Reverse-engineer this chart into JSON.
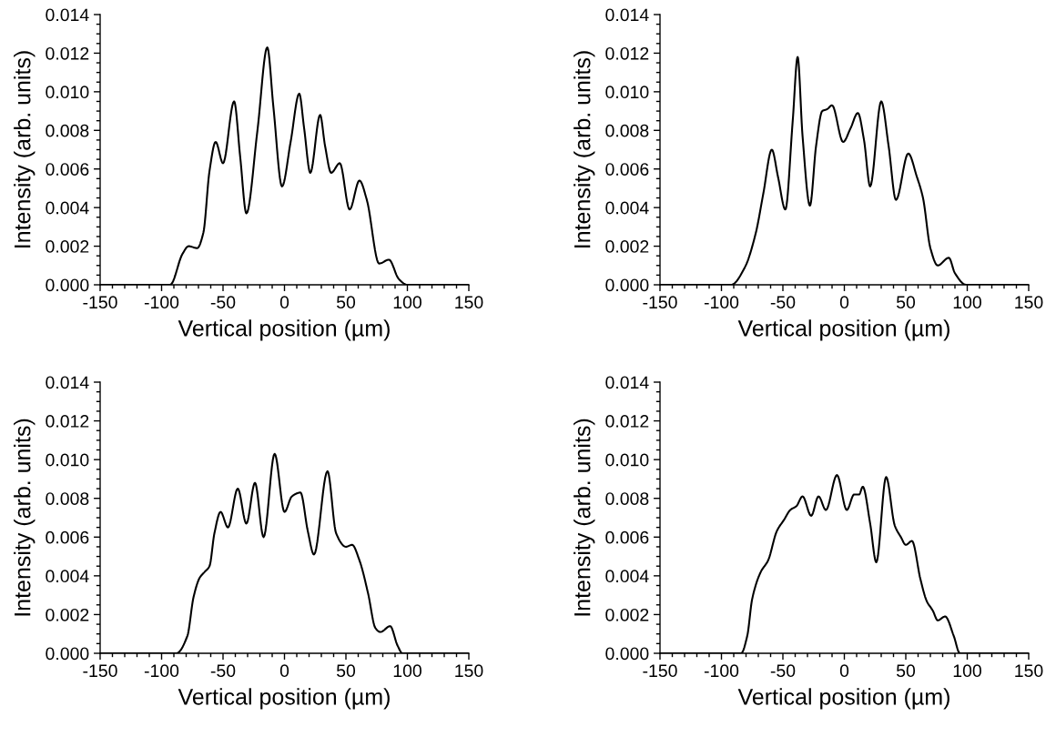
{
  "chart_data": [
    {
      "type": "line",
      "xlabel": "Vertical position (µm)",
      "ylabel": "Intensity (arb. units)",
      "xlim": [
        -150,
        150
      ],
      "xticks": [
        -150,
        -100,
        -50,
        0,
        50,
        100,
        150
      ],
      "ylim": [
        0,
        0.014
      ],
      "yticks": [
        {
          "value": 0,
          "label": "0.000"
        },
        {
          "value": 0.002,
          "label": "0.002"
        },
        {
          "value": 0.004,
          "label": "0.004"
        },
        {
          "value": 0.006,
          "label": "0.006"
        },
        {
          "value": 0.008,
          "label": "0.008"
        },
        {
          "value": 0.01,
          "label": "0.010"
        },
        {
          "value": 0.012,
          "label": "0.012"
        },
        {
          "value": 0.014,
          "label": "0.014"
        }
      ],
      "grid": false,
      "series": [
        {
          "color": "#000000",
          "x": [
            -150,
            -93,
            -83,
            -78,
            -71,
            -66,
            -61,
            -56,
            -50,
            -41,
            -36,
            -31,
            -22,
            -14,
            -9,
            -2,
            5,
            12,
            16,
            21,
            29,
            33,
            38,
            45,
            53,
            61,
            67,
            77,
            85,
            93,
            100,
            150
          ],
          "values": [
            0,
            0,
            0.0016,
            0.002,
            0.0019,
            0.0027,
            0.0059,
            0.0074,
            0.0063,
            0.0095,
            0.0066,
            0.0037,
            0.008,
            0.0123,
            0.0092,
            0.0051,
            0.0074,
            0.0099,
            0.0081,
            0.0058,
            0.0088,
            0.0072,
            0.0058,
            0.0063,
            0.0039,
            0.0054,
            0.0044,
            0.0011,
            0.0013,
            0.0003,
            0,
            0
          ]
        }
      ]
    },
    {
      "type": "line",
      "xlabel": "Vertical position (µm)",
      "ylabel": "Intensity (arb. units)",
      "xlim": [
        -150,
        150
      ],
      "xticks": [
        -150,
        -100,
        -50,
        0,
        50,
        100,
        150
      ],
      "ylim": [
        0,
        0.014
      ],
      "yticks": [
        {
          "value": 0,
          "label": "0.000"
        },
        {
          "value": 0.002,
          "label": "0.002"
        },
        {
          "value": 0.004,
          "label": "0.004"
        },
        {
          "value": 0.006,
          "label": "0.006"
        },
        {
          "value": 0.008,
          "label": "0.008"
        },
        {
          "value": 0.01,
          "label": "0.010"
        },
        {
          "value": 0.012,
          "label": "0.012"
        },
        {
          "value": 0.014,
          "label": "0.014"
        }
      ],
      "grid": false,
      "series": [
        {
          "color": "#000000",
          "x": [
            -150,
            -92,
            -81,
            -72,
            -66,
            -59,
            -54,
            -48,
            -42,
            -38,
            -34,
            -28,
            -23,
            -18,
            -14,
            -10,
            -1,
            5,
            11,
            16,
            21,
            30,
            36,
            42,
            52,
            59,
            64,
            70,
            76,
            85,
            90,
            99,
            150
          ],
          "values": [
            0,
            0,
            0.0009,
            0.0027,
            0.0047,
            0.007,
            0.0056,
            0.0039,
            0.0085,
            0.0118,
            0.0077,
            0.0041,
            0.0072,
            0.009,
            0.0091,
            0.0093,
            0.0074,
            0.0081,
            0.0089,
            0.0075,
            0.0051,
            0.0095,
            0.0072,
            0.0044,
            0.0068,
            0.0056,
            0.0045,
            0.0019,
            0.001,
            0.0014,
            0.0006,
            0,
            0
          ]
        }
      ]
    },
    {
      "type": "line",
      "xlabel": "Vertical position (µm)",
      "ylabel": "Intensity (arb. units)",
      "xlim": [
        -150,
        150
      ],
      "xticks": [
        -150,
        -100,
        -50,
        0,
        50,
        100,
        150
      ],
      "ylim": [
        0,
        0.014
      ],
      "yticks": [
        {
          "value": 0,
          "label": "0.000"
        },
        {
          "value": 0.002,
          "label": "0.002"
        },
        {
          "value": 0.004,
          "label": "0.004"
        },
        {
          "value": 0.006,
          "label": "0.006"
        },
        {
          "value": 0.008,
          "label": "0.008"
        },
        {
          "value": 0.01,
          "label": "0.010"
        },
        {
          "value": 0.012,
          "label": "0.012"
        },
        {
          "value": 0.014,
          "label": "0.014"
        }
      ],
      "grid": false,
      "series": [
        {
          "color": "#000000",
          "x": [
            -150,
            -88,
            -79,
            -74,
            -69,
            -65,
            -61,
            -57,
            -52,
            -46,
            -38,
            -31,
            -24,
            -17,
            -8,
            0,
            6,
            13,
            19,
            24,
            35,
            42,
            50,
            55,
            61,
            68,
            74,
            78,
            86,
            92,
            96,
            150
          ],
          "values": [
            0,
            0,
            0.0009,
            0.0029,
            0.0039,
            0.0042,
            0.0045,
            0.0062,
            0.0073,
            0.0065,
            0.0085,
            0.0067,
            0.0088,
            0.006,
            0.0103,
            0.0073,
            0.0081,
            0.0083,
            0.0063,
            0.0051,
            0.0094,
            0.0062,
            0.0055,
            0.0056,
            0.0048,
            0.0031,
            0.0013,
            0.0011,
            0.0014,
            0.0004,
            0,
            0
          ]
        }
      ]
    },
    {
      "type": "line",
      "xlabel": "Vertical position (µm)",
      "ylabel": "Intensity (arb. units)",
      "xlim": [
        -150,
        150
      ],
      "xticks": [
        -150,
        -100,
        -50,
        0,
        50,
        100,
        150
      ],
      "ylim": [
        0,
        0.014
      ],
      "yticks": [
        {
          "value": 0,
          "label": "0.000"
        },
        {
          "value": 0.002,
          "label": "0.002"
        },
        {
          "value": 0.004,
          "label": "0.004"
        },
        {
          "value": 0.006,
          "label": "0.006"
        },
        {
          "value": 0.008,
          "label": "0.008"
        },
        {
          "value": 0.01,
          "label": "0.010"
        },
        {
          "value": 0.012,
          "label": "0.012"
        },
        {
          "value": 0.014,
          "label": "0.014"
        }
      ],
      "grid": false,
      "series": [
        {
          "color": "#000000",
          "x": [
            -150,
            -84,
            -79,
            -75,
            -68,
            -62,
            -55,
            -49,
            -44,
            -39,
            -34,
            -27,
            -21,
            -15,
            -6,
            2,
            8,
            12,
            15,
            21,
            26,
            34,
            41,
            46,
            50,
            55,
            62,
            67,
            72,
            76,
            82,
            89,
            94,
            150
          ],
          "values": [
            0,
            0,
            0.0009,
            0.0028,
            0.0042,
            0.0048,
            0.0063,
            0.0069,
            0.0074,
            0.0076,
            0.0081,
            0.0071,
            0.0081,
            0.0074,
            0.0092,
            0.0074,
            0.0082,
            0.0082,
            0.0086,
            0.0067,
            0.0047,
            0.0091,
            0.0066,
            0.006,
            0.0056,
            0.0058,
            0.0038,
            0.0027,
            0.0022,
            0.0017,
            0.0019,
            0.0009,
            0,
            0
          ]
        }
      ]
    }
  ]
}
